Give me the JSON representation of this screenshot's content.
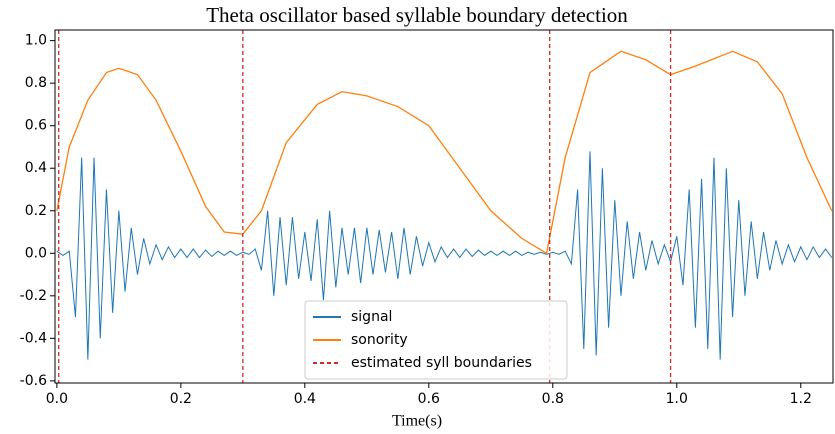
{
  "chart_data": {
    "type": "line",
    "title": "Theta oscillator based syllable boundary detection",
    "xlabel": "Time(s)",
    "xlim": [
      -0.003,
      1.252
    ],
    "ylim": [
      -0.61,
      1.05
    ],
    "xticks": [
      {
        "value": 0,
        "label": "0.0"
      },
      0.2,
      0.4,
      0.6,
      0.8,
      {
        "value": 1,
        "label": "1.0"
      },
      1.2
    ],
    "yticks": [
      {
        "value": 1,
        "label": "1.0"
      },
      0.8,
      0.6,
      0.4,
      0.2,
      {
        "value": 0,
        "label": "0.0"
      },
      -0.2,
      -0.4,
      -0.6
    ],
    "legend": "lower center",
    "series": [
      {
        "name": "signal",
        "color": "#1f77b4",
        "x": [
          0,
          0.01,
          0.02,
          0.03,
          0.04,
          0.05,
          0.06,
          0.07,
          0.08,
          0.09,
          0.1,
          0.11,
          0.12,
          0.13,
          0.14,
          0.15,
          0.16,
          0.17,
          0.18,
          0.19,
          0.2,
          0.21,
          0.22,
          0.23,
          0.24,
          0.25,
          0.26,
          0.27,
          0.28,
          0.29,
          0.3,
          0.31,
          0.32,
          0.33,
          0.34,
          0.35,
          0.36,
          0.37,
          0.38,
          0.39,
          0.4,
          0.41,
          0.42,
          0.43,
          0.44,
          0.45,
          0.46,
          0.47,
          0.48,
          0.49,
          0.5,
          0.51,
          0.52,
          0.53,
          0.54,
          0.55,
          0.56,
          0.57,
          0.58,
          0.59,
          0.6,
          0.61,
          0.62,
          0.63,
          0.64,
          0.65,
          0.66,
          0.67,
          0.68,
          0.69,
          0.7,
          0.71,
          0.72,
          0.73,
          0.74,
          0.75,
          0.76,
          0.77,
          0.78,
          0.79,
          0.8,
          0.81,
          0.82,
          0.83,
          0.84,
          0.85,
          0.86,
          0.87,
          0.88,
          0.89,
          0.9,
          0.91,
          0.92,
          0.93,
          0.94,
          0.95,
          0.96,
          0.97,
          0.98,
          0.99,
          1,
          1.01,
          1.02,
          1.03,
          1.04,
          1.05,
          1.06,
          1.07,
          1.08,
          1.09,
          1.1,
          1.11,
          1.12,
          1.13,
          1.14,
          1.15,
          1.16,
          1.17,
          1.18,
          1.19,
          1.2,
          1.21,
          1.22,
          1.23,
          1.24,
          1.25
        ],
        "values": [
          0.01,
          -0.01,
          0.01,
          -0.3,
          0.45,
          -0.5,
          0.45,
          -0.4,
          0.3,
          -0.28,
          0.2,
          -0.18,
          0.12,
          -0.1,
          0.07,
          -0.05,
          0.04,
          -0.03,
          0.03,
          -0.02,
          0.02,
          -0.02,
          0.02,
          -0.02,
          0.015,
          -0.015,
          0.01,
          -0.01,
          0.01,
          -0.01,
          0.005,
          -0.005,
          0.02,
          -0.08,
          0.2,
          -0.2,
          0.17,
          -0.15,
          0.17,
          -0.12,
          0.1,
          -0.13,
          0.16,
          -0.22,
          0.2,
          -0.16,
          0.12,
          -0.1,
          0.12,
          -0.14,
          0.12,
          -0.1,
          0.11,
          -0.09,
          0.1,
          -0.12,
          0.12,
          -0.1,
          0.08,
          -0.06,
          0.05,
          -0.04,
          0.03,
          -0.02,
          0.02,
          -0.02,
          0.02,
          -0.015,
          0.015,
          -0.01,
          0.01,
          -0.01,
          0.01,
          -0.01,
          0.01,
          -0.01,
          0.005,
          -0.005,
          0.005,
          -0.005,
          0.005,
          -0.005,
          0.01,
          -0.05,
          0.3,
          -0.45,
          0.48,
          -0.48,
          0.4,
          -0.35,
          0.25,
          -0.2,
          0.15,
          -0.12,
          0.1,
          -0.08,
          0.06,
          -0.05,
          0.04,
          -0.04,
          0.08,
          -0.15,
          0.3,
          -0.35,
          0.35,
          -0.45,
          0.45,
          -0.5,
          0.4,
          -0.3,
          0.25,
          -0.2,
          0.15,
          -0.12,
          0.1,
          -0.08,
          0.06,
          -0.05,
          0.04,
          -0.04,
          0.03,
          -0.03,
          0.03,
          -0.02,
          0.02,
          -0.02
        ]
      },
      {
        "name": "sonority",
        "color": "#ff7f0e",
        "x": [
          0,
          0.02,
          0.05,
          0.08,
          0.1,
          0.13,
          0.16,
          0.2,
          0.24,
          0.27,
          0.3,
          0.33,
          0.37,
          0.42,
          0.46,
          0.5,
          0.55,
          0.6,
          0.65,
          0.7,
          0.75,
          0.79,
          0.82,
          0.86,
          0.91,
          0.95,
          0.99,
          1.03,
          1.09,
          1.13,
          1.17,
          1.21,
          1.25
        ],
        "values": [
          0.2,
          0.5,
          0.72,
          0.85,
          0.87,
          0.84,
          0.72,
          0.48,
          0.22,
          0.1,
          0.09,
          0.2,
          0.52,
          0.7,
          0.76,
          0.74,
          0.69,
          0.6,
          0.4,
          0.2,
          0.07,
          0.0,
          0.45,
          0.85,
          0.95,
          0.91,
          0.84,
          0.88,
          0.95,
          0.9,
          0.75,
          0.45,
          0.2
        ]
      }
    ],
    "boundaries": {
      "name": "estimated syll boundaries",
      "color": "#d62728",
      "x": [
        0.003,
        0.3,
        0.795,
        0.99
      ]
    }
  }
}
